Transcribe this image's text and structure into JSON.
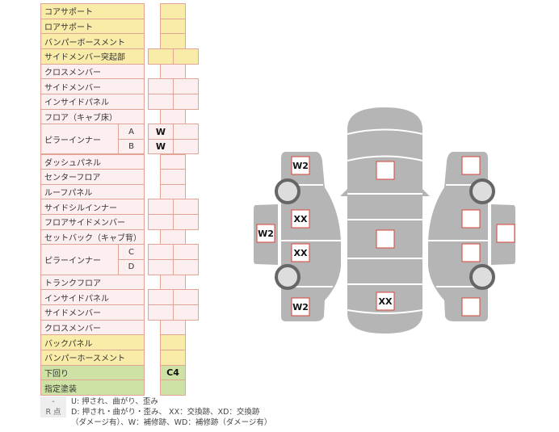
{
  "rows": [
    {
      "label": "コアサポート",
      "sub": "",
      "layout": "single",
      "color": "yellow",
      "values": [
        ""
      ]
    },
    {
      "label": "ロアサポート",
      "sub": "",
      "layout": "single",
      "color": "yellow",
      "values": [
        ""
      ]
    },
    {
      "label": "バンパーボースメント",
      "sub": "",
      "layout": "single",
      "color": "yellow",
      "values": [
        ""
      ]
    },
    {
      "label": "サイドメンバー突起部",
      "sub": "",
      "layout": "double",
      "color": "yellow",
      "values": [
        "",
        ""
      ]
    },
    {
      "label": "クロスメンバー",
      "sub": "",
      "layout": "single",
      "color": "pink",
      "values": [
        ""
      ]
    },
    {
      "label": "サイドメンバー",
      "sub": "",
      "layout": "double",
      "color": "pink",
      "values": [
        "",
        ""
      ]
    },
    {
      "label": "インサイドパネル",
      "sub": "",
      "layout": "double",
      "color": "pink",
      "values": [
        "",
        ""
      ]
    },
    {
      "label": "フロア（キャブ床）",
      "sub": "",
      "layout": "single",
      "color": "pink",
      "values": [
        ""
      ]
    },
    {
      "label": "ピラーインナー",
      "sub": "A",
      "layout": "double",
      "color": "pink",
      "values": [
        "W",
        ""
      ],
      "span": 2
    },
    {
      "label": "",
      "sub": "B",
      "layout": "double",
      "color": "pink",
      "values": [
        "W",
        ""
      ],
      "cont": true
    },
    {
      "label": "ダッシュパネル",
      "sub": "",
      "layout": "single",
      "color": "pink",
      "values": [
        ""
      ]
    },
    {
      "label": "センターフロア",
      "sub": "",
      "layout": "single",
      "color": "pink",
      "values": [
        ""
      ]
    },
    {
      "label": "ルーフパネル",
      "sub": "",
      "layout": "single",
      "color": "pink",
      "values": [
        ""
      ]
    },
    {
      "label": "サイドシルインナー",
      "sub": "",
      "layout": "double",
      "color": "pink",
      "values": [
        "",
        ""
      ]
    },
    {
      "label": "フロアサイドメンバー",
      "sub": "",
      "layout": "double",
      "color": "pink",
      "values": [
        "",
        ""
      ]
    },
    {
      "label": "セットバック（キャブ背）",
      "sub": "",
      "layout": "single",
      "color": "pink",
      "values": [
        ""
      ]
    },
    {
      "label": "ピラーインナー",
      "sub": "C",
      "layout": "double",
      "color": "pink",
      "values": [
        "",
        ""
      ],
      "span": 2
    },
    {
      "label": "",
      "sub": "D",
      "layout": "double",
      "color": "pink",
      "values": [
        "",
        ""
      ],
      "cont": true
    },
    {
      "label": "トランクフロア",
      "sub": "",
      "layout": "single",
      "color": "pink",
      "values": [
        ""
      ]
    },
    {
      "label": "インサイドパネル",
      "sub": "",
      "layout": "double",
      "color": "pink",
      "values": [
        "",
        ""
      ]
    },
    {
      "label": "サイドメンバー",
      "sub": "",
      "layout": "double",
      "color": "pink",
      "values": [
        "",
        ""
      ]
    },
    {
      "label": "クロスメンバー",
      "sub": "",
      "layout": "single",
      "color": "pink",
      "values": [
        ""
      ]
    },
    {
      "label": "バックパネル",
      "sub": "",
      "layout": "single",
      "color": "yellow",
      "values": [
        ""
      ]
    },
    {
      "label": "バンパーホースメント",
      "sub": "",
      "layout": "single",
      "color": "yellow",
      "values": [
        ""
      ]
    },
    {
      "label": "下回り",
      "sub": "",
      "layout": "single",
      "color": "green",
      "values": [
        "C4"
      ]
    },
    {
      "label": "指定塗装",
      "sub": "",
      "layout": "single",
      "color": "green",
      "values": [
        ""
      ]
    }
  ],
  "legend": [
    {
      "key": "-",
      "text": "U: 押され、曲がり、歪み"
    },
    {
      "key": "R 点",
      "text": "D: 押され・曲がり・歪み、 XX：交換跡、XD：交換跡"
    },
    {
      "key": "",
      "text": "（ダメージ有）、W：補修跡、WD：補修跡（ダメージ有）"
    }
  ],
  "diagram": {
    "left_side": {
      "front_fender": "W2",
      "front_door": "XX",
      "rear_door": "XX",
      "rear_fender": "W2",
      "door_panel": "W2"
    },
    "top": {
      "hood": "",
      "roof": "",
      "trunk": "XX"
    },
    "right_side": {
      "front_fender": "",
      "front_door": "",
      "rear_door": "",
      "rear_fender": "",
      "door_panel": ""
    }
  },
  "colors": {
    "yellow": "#f9eba8",
    "pink": "#fdeef0",
    "green": "#cfe2a5",
    "border": "#e2a494",
    "body_gray": "#b5b5b5",
    "box_border": "#d9443a"
  }
}
